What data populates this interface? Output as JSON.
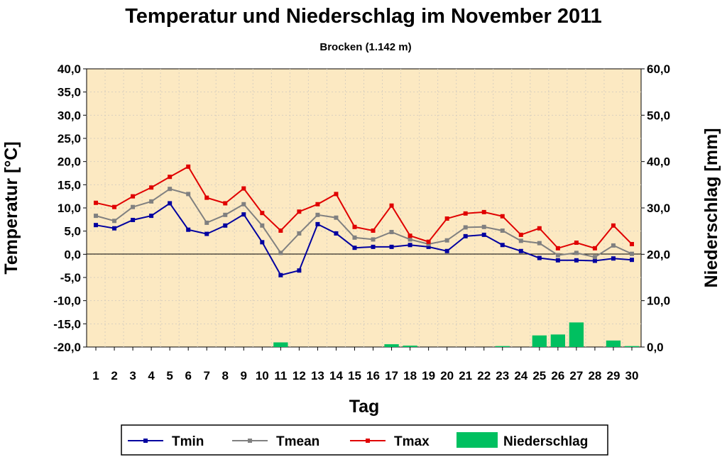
{
  "chart_data": {
    "type": "line",
    "title": "Temperatur und Niederschlag im November 2011",
    "subtitle": "Brocken (1.142 m)",
    "xlabel": "Tag",
    "ylabel": "Temperatur [°C]",
    "y2label": "Niederschlag [mm]",
    "ylim": [
      -20,
      40
    ],
    "y2lim": [
      0,
      60
    ],
    "y_ticks": [
      "40,0",
      "35,0",
      "30,0",
      "25,0",
      "20,0",
      "15,0",
      "10,0",
      "5,0",
      "0,0",
      "-5,0",
      "-10,0",
      "-15,0",
      "-20,0"
    ],
    "y2_ticks": [
      "60,0",
      "50,0",
      "40,0",
      "30,0",
      "20,0",
      "10,0",
      "0,0"
    ],
    "categories": [
      "1",
      "2",
      "3",
      "4",
      "5",
      "6",
      "7",
      "8",
      "9",
      "10",
      "11",
      "12",
      "13",
      "14",
      "15",
      "16",
      "17",
      "18",
      "19",
      "20",
      "21",
      "22",
      "23",
      "24",
      "25",
      "26",
      "27",
      "28",
      "29",
      "30"
    ],
    "grid": true,
    "legend_position": "bottom",
    "plot_background": "#FCE9C2",
    "series": [
      {
        "name": "Tmin",
        "type": "line",
        "axis": "left",
        "color": "#0000A0",
        "values": [
          6.3,
          5.6,
          7.4,
          8.3,
          11.0,
          5.3,
          4.4,
          6.2,
          8.6,
          2.6,
          -4.5,
          -3.5,
          6.5,
          4.5,
          1.4,
          1.6,
          1.6,
          2.0,
          1.6,
          0.7,
          3.9,
          4.2,
          2.0,
          0.7,
          -0.8,
          -1.3,
          -1.3,
          -1.4,
          -0.9,
          -1.2
        ]
      },
      {
        "name": "Tmean",
        "type": "line",
        "axis": "left",
        "color": "#808080",
        "values": [
          8.3,
          7.2,
          10.2,
          11.4,
          14.1,
          13.0,
          6.8,
          8.5,
          10.8,
          6.2,
          0.3,
          4.5,
          8.5,
          7.9,
          3.6,
          3.2,
          4.8,
          3.2,
          2.2,
          3.0,
          5.8,
          5.9,
          5.1,
          2.9,
          2.4,
          -0.2,
          0.3,
          -0.6,
          1.9,
          0.1
        ]
      },
      {
        "name": "Tmax",
        "type": "line",
        "axis": "left",
        "color": "#E00000",
        "values": [
          11.1,
          10.2,
          12.5,
          14.4,
          16.7,
          18.9,
          12.2,
          11.0,
          14.2,
          8.9,
          5.1,
          9.2,
          10.8,
          13.0,
          5.9,
          5.1,
          10.5,
          4.0,
          2.7,
          7.7,
          8.8,
          9.1,
          8.2,
          4.2,
          5.6,
          1.3,
          2.5,
          1.3,
          6.2,
          2.2
        ]
      },
      {
        "name": "Niederschlag",
        "type": "bar",
        "axis": "right",
        "color": "#00C060",
        "values": [
          0,
          0,
          0,
          0,
          0,
          0,
          0,
          0,
          0,
          0,
          1.0,
          0,
          0,
          0,
          0,
          0,
          0.6,
          0.3,
          0,
          0,
          0,
          0,
          0.2,
          0,
          2.5,
          2.7,
          5.3,
          0,
          1.4,
          0.2
        ]
      }
    ]
  }
}
